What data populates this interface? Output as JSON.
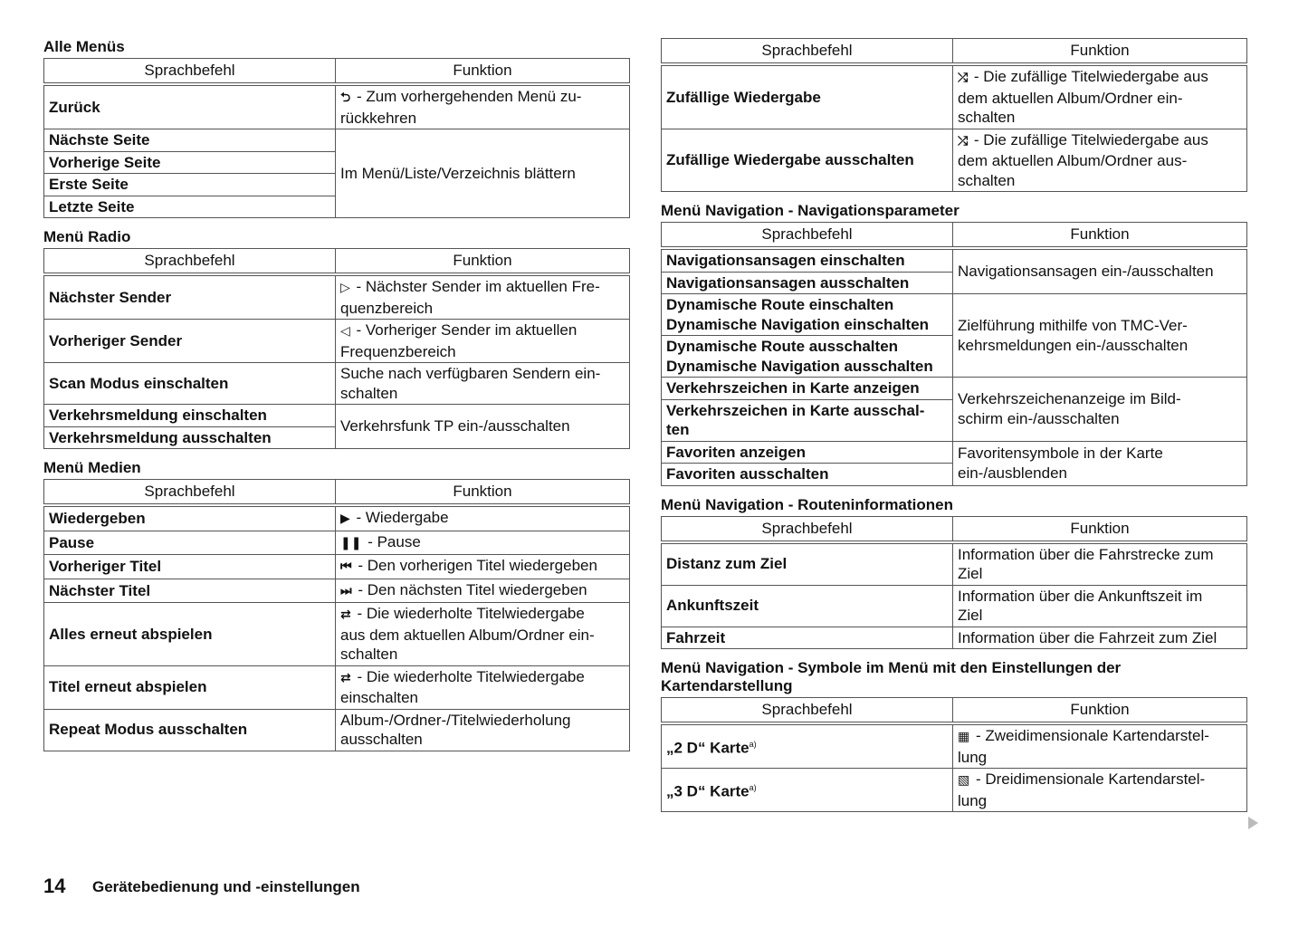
{
  "sections": [
    {
      "title": "Alle Menüs",
      "headers": [
        "Sprachbefehl",
        "Funktion"
      ],
      "groups": [
        {
          "cmds": [
            "Zurück"
          ],
          "icon": "⮌",
          "func": " - Zum vorhergehenden Menü zu-\nrückkehren"
        },
        {
          "cmds": [
            "Nächste Seite",
            "Vorherige Seite",
            "Erste Seite",
            "Letzte Seite"
          ],
          "func": "Im Menü/Liste/Verzeichnis blättern"
        }
      ]
    },
    {
      "title": "Menü Radio",
      "headers": [
        "Sprachbefehl",
        "Funktion"
      ],
      "groups": [
        {
          "cmds": [
            "Nächster Sender"
          ],
          "icon": "▷",
          "func": " - Nächster Sender im aktuellen Fre-\nquenzbereich"
        },
        {
          "cmds": [
            "Vorheriger Sender"
          ],
          "icon": "◁",
          "func": " - Vorheriger Sender im aktuellen\nFrequenzbereich"
        },
        {
          "cmds": [
            "Scan Modus einschalten"
          ],
          "func": "Suche nach verfügbaren Sendern ein-\nschalten"
        },
        {
          "cmds": [
            "Verkehrsmeldung einschalten",
            "Verkehrsmeldung ausschalten"
          ],
          "func": "Verkehrsfunk TP ein-/ausschalten"
        }
      ]
    },
    {
      "title": "Menü Medien",
      "headers": [
        "Sprachbefehl",
        "Funktion"
      ],
      "groups": [
        {
          "cmds": [
            "Wiedergeben"
          ],
          "icon": "▶",
          "func": " - Wiedergabe"
        },
        {
          "cmds": [
            "Pause"
          ],
          "icon": "❚❚",
          "func": " - Pause"
        },
        {
          "cmds": [
            "Vorheriger Titel"
          ],
          "icon": "⏮",
          "func": " - Den vorherigen Titel wiedergeben"
        },
        {
          "cmds": [
            "Nächster Titel"
          ],
          "icon": "⏭",
          "func": " - Den nächsten Titel wiedergeben"
        },
        {
          "cmds": [
            "Alles erneut abspielen"
          ],
          "icon": "⇄",
          "func": " - Die wiederholte Titelwiedergabe\naus dem aktuellen Album/Ordner ein-\nschalten"
        },
        {
          "cmds": [
            "Titel erneut abspielen"
          ],
          "icon": "⇄",
          "func": " - Die wiederholte Titelwiedergabe\neinschalten"
        },
        {
          "cmds": [
            "Repeat Modus ausschalten"
          ],
          "func": "Album-/Ordner-/Titelwiederholung\nausschalten"
        }
      ]
    },
    {
      "title": "",
      "headers": [
        "Sprachbefehl",
        "Funktion"
      ],
      "groups": [
        {
          "cmds": [
            "Zufällige Wiedergabe"
          ],
          "icon": "⤮",
          "func": " - Die zufällige Titelwiedergabe aus\ndem aktuellen Album/Ordner ein-\nschalten"
        },
        {
          "cmds": [
            "Zufällige Wiedergabe ausschalten"
          ],
          "icon": "⤮",
          "func": " - Die zufällige Titelwiedergabe aus\ndem aktuellen Album/Ordner aus-\nschalten"
        }
      ]
    },
    {
      "title": "Menü Navigation - Navigationsparameter",
      "headers": [
        "Sprachbefehl",
        "Funktion"
      ],
      "groups": [
        {
          "cmds": [
            "Navigationsansagen einschalten",
            "Navigationsansagen ausschalten"
          ],
          "func": "Navigationsansagen ein-/ausschalten"
        },
        {
          "cmds": [
            "Dynamische Route einschalten\nDynamische Navigation einschalten",
            "Dynamische Route ausschalten\nDynamische Navigation ausschalten"
          ],
          "func": "Zielführung mithilfe von TMC-Ver-\nkehrsmeldungen ein-/ausschalten"
        },
        {
          "cmds": [
            "Verkehrszeichen in Karte anzeigen",
            "Verkehrszeichen in Karte ausschal-\nten"
          ],
          "func": "Verkehrszeichenanzeige im Bild-\nschirm ein-/ausschalten"
        },
        {
          "cmds": [
            "Favoriten anzeigen",
            "Favoriten ausschalten"
          ],
          "func": "Favoritensymbole in der Karte\nein-/ausblenden"
        }
      ]
    },
    {
      "title": "Menü Navigation - Routeninformationen",
      "headers": [
        "Sprachbefehl",
        "Funktion"
      ],
      "groups": [
        {
          "cmds": [
            "Distanz zum Ziel"
          ],
          "func": "Information über die Fahrstrecke zum\nZiel"
        },
        {
          "cmds": [
            "Ankunftszeit"
          ],
          "func": "Information über die Ankunftszeit im\nZiel"
        },
        {
          "cmds": [
            "Fahrzeit"
          ],
          "func": "Information über die Fahrzeit zum Ziel"
        }
      ]
    },
    {
      "title": "Menü Navigation - Symbole im Menü mit den Einstellungen der\nKartendarstellung",
      "headers": [
        "Sprachbefehl",
        "Funktion"
      ],
      "groups": [
        {
          "cmds": [
            "„2 D“ Karte"
          ],
          "sup": "a)",
          "icon": "▦",
          "func": " - Zweidimensionale Kartendarstel-\nlung"
        },
        {
          "cmds": [
            "„3 D“ Karte"
          ],
          "sup": "a)",
          "icon": "▧",
          "func": " - Dreidimensionale Kartendarstel-\nlung"
        }
      ]
    }
  ],
  "footer": {
    "page_number": "14",
    "chapter": "Gerätebedienung und -einstellungen"
  }
}
